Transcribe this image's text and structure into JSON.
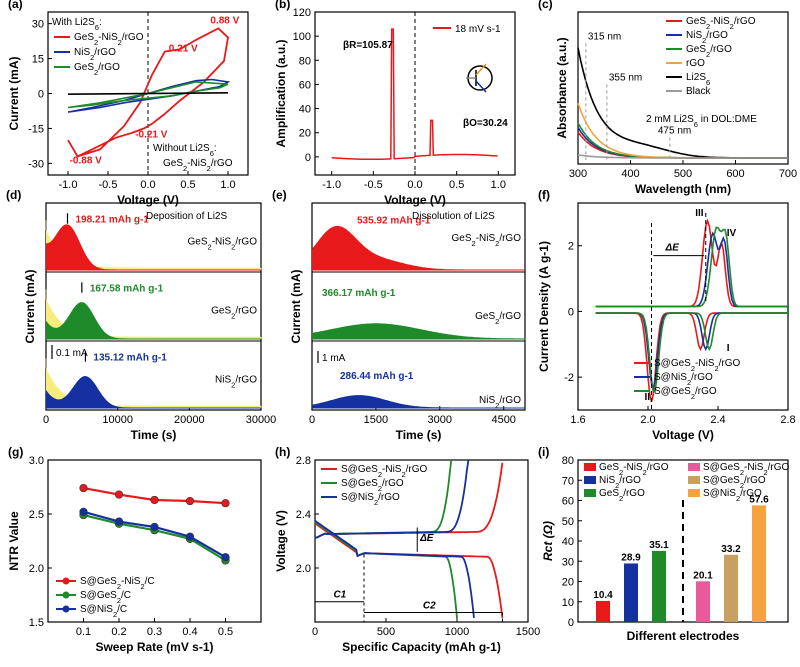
{
  "colors": {
    "red": "#e8191b",
    "blue": "#1530a0",
    "green": "#1e8a2a",
    "orange": "#f5a340",
    "black": "#000000",
    "gray": "#999999",
    "yellow": "#f8ec7c",
    "pink": "#e85a9a",
    "tan": "#c8a060"
  },
  "chart_data": [
    {
      "id": "a",
      "panel_label": "(a)",
      "type": "line",
      "xlabel": "Voltage (V)",
      "ylabel": "Current (mA)",
      "xlim": [
        -1.25,
        1.25
      ],
      "ylim": [
        -35,
        35
      ],
      "xticks": [
        "-1.0",
        "-0.5",
        "0.0",
        "0.5",
        "1.0"
      ],
      "xtick_values": [
        -1.0,
        -0.5,
        0.0,
        0.5,
        1.0
      ],
      "yticks": [
        "-30",
        "-15",
        "0",
        "15",
        "30"
      ],
      "ytick_values": [
        -30,
        -15,
        0,
        15,
        30
      ],
      "legend_title": "With Li2S6:",
      "series": [
        {
          "name": "GeS2-NiS2/rGO",
          "color": "red"
        },
        {
          "name": "NiS2/rGO",
          "color": "blue"
        },
        {
          "name": "GeS2/rGO",
          "color": "green"
        },
        {
          "name": "GeS2-NiS2/rGO",
          "color": "black",
          "group": "Without Li2S6:"
        }
      ],
      "annotations": [
        {
          "text": "0.88 V",
          "x": 0.88,
          "y": 30,
          "color": "red"
        },
        {
          "text": "0.21 V",
          "x": 0.21,
          "y": 18,
          "color": "red"
        },
        {
          "text": "-0.21 V",
          "x": -0.21,
          "y": -19,
          "color": "red"
        },
        {
          "text": "-0.88 V",
          "x": -0.88,
          "y": -30,
          "color": "red"
        }
      ],
      "cv": {
        "GeS2-NiS2/rGO": {
          "x": [
            -1.0,
            -0.88,
            -0.6,
            -0.3,
            -0.1,
            0.05,
            0.21,
            0.4,
            0.6,
            0.88,
            1.0,
            0.95,
            0.7,
            0.4,
            0.2,
            0.05,
            -0.05,
            -0.21,
            -0.4,
            -0.7,
            -0.88,
            -1.0
          ],
          "y": [
            -20,
            -27,
            -24,
            -14,
            -4,
            8,
            18,
            19,
            23,
            28,
            24,
            14,
            5,
            -3,
            -9,
            -13,
            -15,
            -17,
            -19,
            -24,
            -27,
            -20
          ]
        },
        "NiS2/rGO": {
          "x": [
            -1.0,
            -0.7,
            -0.3,
            0.0,
            0.3,
            0.6,
            0.8,
            1.0,
            0.9,
            0.6,
            0.3,
            0.0,
            -0.3,
            -0.6,
            -1.0
          ],
          "y": [
            -8,
            -6,
            -3,
            0,
            3,
            5.5,
            6,
            5,
            3,
            1,
            -1,
            -2.5,
            -4,
            -6,
            -8
          ]
        },
        "GeS2/rGO": {
          "x": [
            -1.0,
            -0.6,
            -0.3,
            0.0,
            0.3,
            0.6,
            1.0,
            0.9,
            0.6,
            0.3,
            0.0,
            -0.3,
            -0.7,
            -1.0
          ],
          "y": [
            -6,
            -4,
            -2,
            0,
            2.5,
            5,
            4,
            2.5,
            1,
            -1,
            -2,
            -3,
            -5,
            -6
          ]
        },
        "black": {
          "x": [
            -1.0,
            0,
            1.0
          ],
          "y": [
            -0.3,
            0,
            0.3
          ]
        }
      },
      "note_without_title": "Without Li2S6:",
      "note_without_series": "GeS2-NiS2/rGO"
    },
    {
      "id": "b",
      "panel_label": "(b)",
      "type": "line",
      "xlabel": "Voltage (V)",
      "ylabel": "Amplification (a.u.)",
      "xlim": [
        -1.2,
        1.2
      ],
      "ylim": [
        -15,
        120
      ],
      "xticks": [
        "-1.0",
        "-0.5",
        "0.0",
        "0.5",
        "1.0"
      ],
      "xtick_values": [
        -1.0,
        -0.5,
        0.0,
        0.5,
        1.0
      ],
      "yticks": [
        "0",
        "20",
        "40",
        "60",
        "80",
        "100",
        "120"
      ],
      "ytick_values": [
        0,
        20,
        40,
        60,
        80,
        100,
        120
      ],
      "series": [
        {
          "name": "18 mV s-1",
          "color": "red"
        }
      ],
      "annotations": [
        {
          "text": "βR=105.87"
        },
        {
          "text": "βO=30.24"
        }
      ]
    },
    {
      "id": "c",
      "panel_label": "(c)",
      "type": "line",
      "xlabel": "Wavelength (nm)",
      "ylabel": "Absorbance (a.u.)",
      "xlim": [
        300,
        700
      ],
      "ylim": [
        0,
        1
      ],
      "xticks": [
        "300",
        "400",
        "500",
        "600",
        "700"
      ],
      "xtick_values": [
        300,
        400,
        500,
        600,
        700
      ],
      "series": [
        {
          "name": "GeS2-NiS2/rGO",
          "color": "red"
        },
        {
          "name": "NiS2/rGO",
          "color": "blue"
        },
        {
          "name": "GeS2/rGO",
          "color": "green"
        },
        {
          "name": "rGO",
          "color": "orange"
        },
        {
          "name": "Li2S6",
          "color": "black"
        },
        {
          "name": "Black",
          "color": "gray"
        }
      ],
      "annotations": [
        {
          "text": "315 nm"
        },
        {
          "text": "355 nm"
        },
        {
          "text": "475 nm"
        },
        {
          "text": "2 mM Li2S6 in DOL:DME"
        }
      ]
    },
    {
      "id": "d",
      "panel_label": "(d)",
      "type": "area",
      "xlabel": "Time (s)",
      "ylabel": "Current (mA)",
      "xlim": [
        0,
        30000
      ],
      "xticks": [
        "0",
        "10000",
        "20000",
        "30000"
      ],
      "xtick_values": [
        0,
        10000,
        20000,
        30000
      ],
      "title_note": "Deposition of Li2S",
      "scale_bar": "0.1 mA",
      "stacks": [
        {
          "name": "GeS2-NiS2/rGO",
          "capacity": "198.21 mAh g-1",
          "color": "red",
          "peak_t": 3000
        },
        {
          "name": "GeS2/rGO",
          "capacity": "167.58 mAh g-1",
          "color": "green",
          "peak_t": 5000
        },
        {
          "name": "NiS2/rGO",
          "capacity": "135.12 mAh g-1",
          "color": "blue",
          "peak_t": 5500
        }
      ]
    },
    {
      "id": "e",
      "panel_label": "(e)",
      "type": "area",
      "xlabel": "Time (s)",
      "ylabel": "Current (mA)",
      "xlim": [
        0,
        5000
      ],
      "xticks": [
        "0",
        "1500",
        "3000",
        "4500"
      ],
      "xtick_values": [
        0,
        1500,
        3000,
        4500
      ],
      "title_note": "Dissolution of Li2S",
      "scale_bar": "1 mA",
      "stacks": [
        {
          "name": "GeS2-NiS2/rGO",
          "capacity": "535.92 mAh g-1",
          "color": "red"
        },
        {
          "name": "GeS2/rGO",
          "capacity": "366.17 mAh g-1",
          "color": "green"
        },
        {
          "name": "NiS2/rGO",
          "capacity": "286.44 mAh g-1",
          "color": "blue"
        }
      ]
    },
    {
      "id": "f",
      "panel_label": "(f)",
      "type": "line",
      "xlabel": "Voltage (V)",
      "ylabel": "Current Density (A g-1)",
      "xlim": [
        1.6,
        2.8
      ],
      "ylim": [
        -3,
        3.3
      ],
      "xticks": [
        "1.6",
        "2.0",
        "2.4",
        "2.8"
      ],
      "xtick_values": [
        1.6,
        2.0,
        2.4,
        2.8
      ],
      "yticks": [
        "-2",
        "0",
        "2"
      ],
      "ytick_values": [
        -2,
        0,
        2
      ],
      "series": [
        {
          "name": "S@GeS2-NiS2/rGO",
          "color": "red"
        },
        {
          "name": "S@NiS2/rGO",
          "color": "blue"
        },
        {
          "name": "S@GeS2/rGO",
          "color": "green"
        }
      ],
      "annotations": [
        {
          "text": "I"
        },
        {
          "text": "II"
        },
        {
          "text": "III"
        },
        {
          "text": "IV"
        },
        {
          "text": "ΔE"
        }
      ]
    },
    {
      "id": "g",
      "panel_label": "(g)",
      "type": "line",
      "xlabel": "Sweep Rate (mV s-1)",
      "ylabel": "NTR Value",
      "xlim": [
        0,
        0.6
      ],
      "ylim": [
        1.5,
        3.0
      ],
      "xticks": [
        "0.1",
        "0.2",
        "0.3",
        "0.4",
        "0.5"
      ],
      "xtick_values": [
        0.1,
        0.2,
        0.3,
        0.4,
        0.5
      ],
      "yticks": [
        "1.5",
        "2.0",
        "2.5",
        "3.0"
      ],
      "ytick_values": [
        1.5,
        2.0,
        2.5,
        3.0
      ],
      "x": [
        0.1,
        0.2,
        0.3,
        0.4,
        0.5
      ],
      "series": [
        {
          "name": "S@GeS2-NiS2/C",
          "color": "red",
          "values": [
            2.74,
            2.68,
            2.63,
            2.62,
            2.6
          ]
        },
        {
          "name": "S@GeS2/C",
          "color": "green",
          "values": [
            2.49,
            2.41,
            2.35,
            2.27,
            2.07
          ]
        },
        {
          "name": "S@NiS2/C",
          "color": "blue",
          "values": [
            2.52,
            2.43,
            2.38,
            2.29,
            2.1
          ]
        }
      ]
    },
    {
      "id": "h",
      "panel_label": "(h)",
      "type": "line",
      "xlabel": "Specific Capacity (mAh g-1)",
      "ylabel": "Voltage (V)",
      "xlim": [
        0,
        1500
      ],
      "ylim": [
        1.6,
        2.8
      ],
      "xticks": [
        "0",
        "500",
        "1000",
        "1500"
      ],
      "xtick_values": [
        0,
        500,
        1000,
        1500
      ],
      "yticks": [
        "2.0",
        "2.4",
        "2.8"
      ],
      "ytick_values": [
        2.0,
        2.4,
        2.8
      ],
      "series": [
        {
          "name": "S@GeS2-NiS2/rGO",
          "color": "red",
          "discharge_end": 1320,
          "charge_end": 1325
        },
        {
          "name": "S@GeS2/rGO",
          "color": "green",
          "discharge_end": 1000,
          "charge_end": 960
        },
        {
          "name": "S@NiS2/rGO",
          "color": "blue",
          "discharge_end": 1120,
          "charge_end": 1080
        }
      ],
      "annotations": [
        {
          "text": "ΔE"
        },
        {
          "text": "C1"
        },
        {
          "text": "C2"
        }
      ]
    },
    {
      "id": "i",
      "panel_label": "(i)",
      "type": "bar",
      "xlabel": "Different electrodes",
      "ylabel": "Rct (Ω)",
      "ylim": [
        0,
        80
      ],
      "yticks": [
        "0",
        "10",
        "20",
        "30",
        "40",
        "50",
        "60",
        "70",
        "80"
      ],
      "ytick_values": [
        0,
        10,
        20,
        30,
        40,
        50,
        60,
        70,
        80
      ],
      "categories": [
        "GeS2-NiS2/rGO",
        "NiS2/rGO",
        "GeS2/rGO",
        "S@GeS2-NiS2/rGO",
        "S@GeS2/rGO",
        "S@NiS2/rGO"
      ],
      "values": [
        10.4,
        28.9,
        35.1,
        20.1,
        33.2,
        57.6
      ],
      "value_labels": [
        "10.4",
        "28.9",
        "35.1",
        "20.1",
        "33.2",
        "57.6"
      ],
      "bar_colors": [
        "red",
        "blue",
        "green",
        "pink",
        "tan",
        "orange"
      ]
    }
  ]
}
